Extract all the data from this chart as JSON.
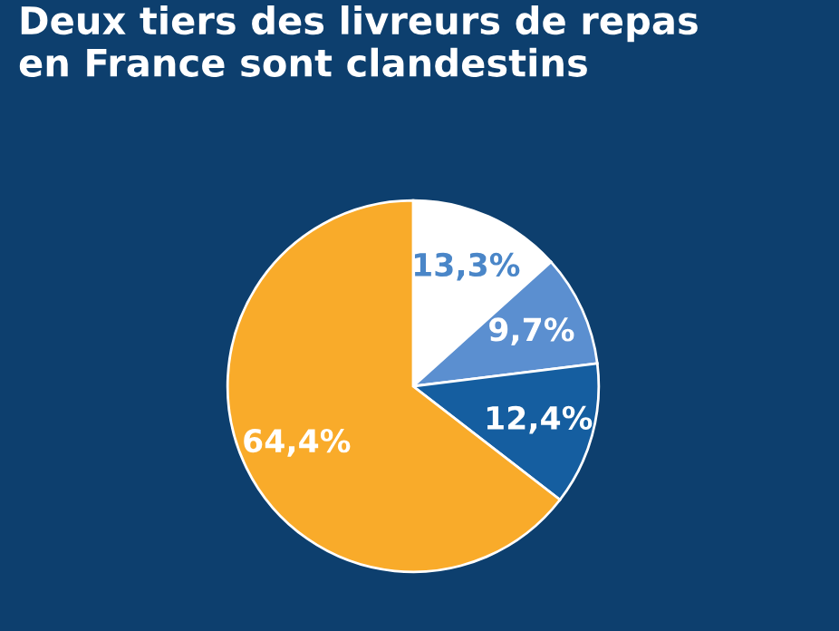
{
  "chart_data": {
    "type": "pie",
    "title": "Deux tiers des livreurs de repas\nen France sont clandestins",
    "categories": [
      null,
      null,
      null,
      null
    ],
    "values": [
      13.3,
      9.7,
      12.4,
      64.4
    ],
    "value_labels": [
      "13,3%",
      "9,7%",
      "12,4%",
      "64,4%"
    ],
    "colors": [
      "#ffffff",
      "#5b8fd0",
      "#155ea0",
      "#f9ab2a"
    ],
    "legend": false
  }
}
